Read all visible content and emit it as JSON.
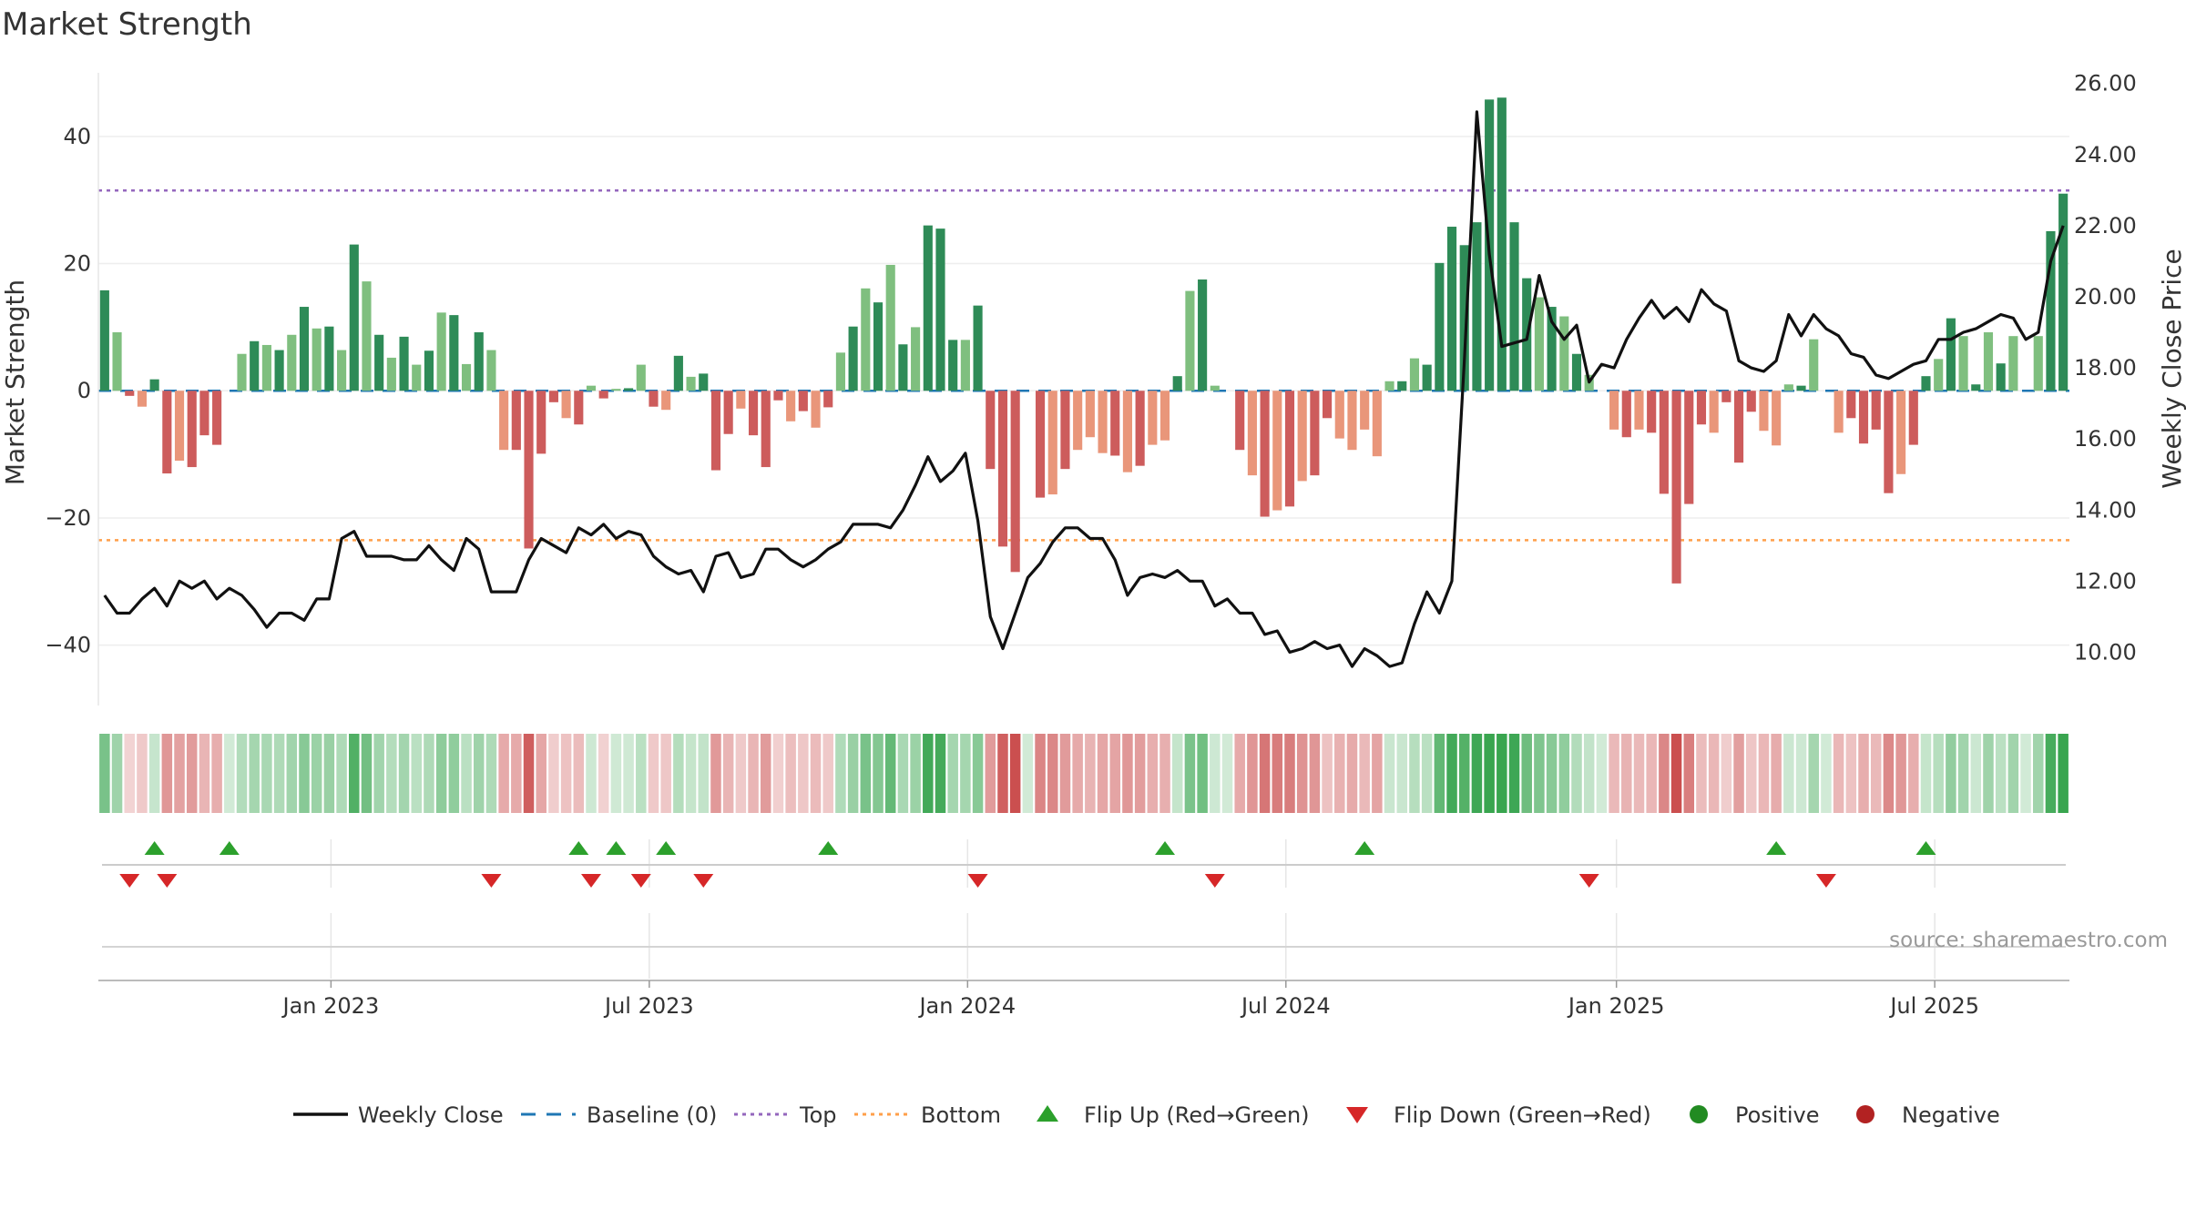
{
  "chart_data": {
    "type": "bar+line",
    "title": "Market Strength",
    "source": "source: sharemaestro.com",
    "left_axis": {
      "label": "Market Strength",
      "ylim": [
        -49.5,
        50
      ],
      "ticks": [
        40,
        20,
        0,
        -20,
        -40
      ],
      "tick_labels": [
        "40",
        "20",
        "0",
        "−20",
        "−40"
      ]
    },
    "right_axis": {
      "label": "Weekly Close Price",
      "ylim": [
        8.5,
        26.3
      ],
      "ticks": [
        26,
        24,
        22,
        20,
        18,
        16,
        14,
        12,
        10
      ],
      "tick_labels": [
        "26.00",
        "24.00",
        "22.00",
        "20.00",
        "18.00",
        "16.00",
        "14.00",
        "12.00",
        "10.00"
      ]
    },
    "x_axis": {
      "start": "2022-08-22",
      "end": "2025-09-22",
      "tick_dates": [
        "2023-01-02",
        "2023-07-03",
        "2024-01-01",
        "2024-07-01",
        "2025-01-06",
        "2025-07-07"
      ],
      "tick_labels": [
        "Jan 2023",
        "Jul 2023",
        "Jan 2024",
        "Jul 2024",
        "Jan 2025",
        "Jul 2025"
      ]
    },
    "reference_lines": {
      "top": 31.5,
      "bottom": -23.5,
      "baseline": 0
    },
    "strength": [
      15.8,
      9.2,
      -0.8,
      -2.5,
      1.8,
      -13,
      -11,
      -12,
      -7,
      -8.5,
      0,
      5.8,
      7.8,
      7.2,
      6.4,
      8.8,
      13.2,
      9.8,
      10.1,
      6.4,
      23,
      17.2,
      8.8,
      5.2,
      8.5,
      4.1,
      6.3,
      12.3,
      11.9,
      4.2,
      9.2,
      6.4,
      -9.3,
      -9.3,
      -24.8,
      -9.9,
      -1.8,
      -4.3,
      -5.3,
      0.8,
      -1.2,
      0.3,
      0.4,
      4.1,
      -2.5,
      -3,
      5.5,
      2.2,
      2.7,
      -12.5,
      -6.8,
      -2.8,
      -7,
      -12,
      -1.5,
      -4.8,
      -3.2,
      -5.8,
      -2.6,
      6,
      10.1,
      16.1,
      13.9,
      19.8,
      7.3,
      10,
      26,
      25.5,
      8,
      8,
      13.4,
      -12.3,
      -24.5,
      -28.5,
      0,
      -16.8,
      -16.3,
      -12.3,
      -9.3,
      -7.3,
      -9.8,
      -10.2,
      -12.8,
      -11.8,
      -8.5,
      -7.8,
      2.3,
      15.7,
      17.5,
      0.8,
      0,
      -9.3,
      -13.3,
      -19.8,
      -18.8,
      -18.2,
      -14.2,
      -13.3,
      -4.3,
      -7.5,
      -9.3,
      -6.1,
      -10.3,
      1.5,
      1.5,
      5.1,
      4.1,
      20.1,
      25.8,
      22.9,
      26.5,
      45.8,
      46.1,
      26.5,
      17.7,
      14.7,
      13.2,
      11.7,
      5.8,
      2.5,
      0,
      -6.1,
      -7.3,
      -6.1,
      -6.6,
      -16.2,
      -30.3,
      -17.8,
      -5.3,
      -6.6,
      -1.8,
      -11.3,
      -3.3,
      -6.3,
      -8.6,
      1,
      0.8,
      8.1,
      0,
      -6.6,
      -4.3,
      -8.3,
      -6.1,
      -16.1,
      -13.1,
      -8.5,
      2.3,
      5,
      11.4,
      8.6,
      1,
      9.2,
      4.3,
      8.6,
      0,
      8.6,
      25.1,
      31
    ]
  },
  "series_price": {
    "name": "Weekly Close",
    "values": [
      11.6,
      11.1,
      11.1,
      11.5,
      11.8,
      11.3,
      12.0,
      11.8,
      12.0,
      11.5,
      11.8,
      11.6,
      11.2,
      10.7,
      11.1,
      11.1,
      10.9,
      11.5,
      11.5,
      13.2,
      13.4,
      12.7,
      12.7,
      12.7,
      12.6,
      12.6,
      13.0,
      12.6,
      12.3,
      13.2,
      12.9,
      11.7,
      11.7,
      11.7,
      12.6,
      13.2,
      13.0,
      12.8,
      13.5,
      13.3,
      13.6,
      13.2,
      13.4,
      13.3,
      12.7,
      12.4,
      12.2,
      12.3,
      11.7,
      12.7,
      12.8,
      12.1,
      12.2,
      12.9,
      12.9,
      12.6,
      12.4,
      12.6,
      12.9,
      13.1,
      13.6,
      13.6,
      13.6,
      13.5,
      14.0,
      14.7,
      15.5,
      14.8,
      15.1,
      15.6,
      13.7,
      11.0,
      10.1,
      11.1,
      12.1,
      12.5,
      13.1,
      13.5,
      13.5,
      13.2,
      13.2,
      12.6,
      11.6,
      12.1,
      12.2,
      12.1,
      12.3,
      12.0,
      12.0,
      11.3,
      11.5,
      11.1,
      11.1,
      10.5,
      10.6,
      10.0,
      10.1,
      10.3,
      10.1,
      10.2,
      9.6,
      10.1,
      9.9,
      9.6,
      9.7,
      10.8,
      11.7,
      11.1,
      12.0,
      18.2,
      25.2,
      21.2,
      18.6,
      18.7,
      18.8,
      20.6,
      19.3,
      18.8,
      19.2,
      17.6,
      18.1,
      18.0,
      18.8,
      19.4,
      19.9,
      19.4,
      19.7,
      19.3,
      20.2,
      19.8,
      19.6,
      18.2,
      18.0,
      17.9,
      18.2,
      19.5,
      18.9,
      19.5,
      19.1,
      18.9,
      18.4,
      18.3,
      17.8,
      17.7,
      17.9,
      18.1,
      18.2,
      18.8,
      18.8,
      19.0,
      19.1,
      19.3,
      19.5,
      19.4,
      18.8,
      19.0,
      21.0,
      22.0
    ],
    "color": "#111111"
  },
  "flip_up_weeks": [
    4,
    10,
    38,
    41,
    45,
    58,
    85,
    101,
    134,
    146
  ],
  "flip_down_weeks": [
    2,
    5,
    31,
    39,
    43,
    48,
    70,
    89,
    119,
    138
  ],
  "colors": {
    "strong_green": "#2e8b57",
    "light_green": "#7fbf7f",
    "strong_red": "#cd5c5c",
    "light_red": "#e9967a",
    "top_line": "#9467bd",
    "bottom_line": "#ff9f4a",
    "baseline": "#1f77b4",
    "flip_up": "#2ca02c",
    "flip_down": "#d62728",
    "positive": "#228b22",
    "negative": "#b22222"
  },
  "legend": [
    {
      "label": "Weekly Close",
      "marker": "line"
    },
    {
      "label": "Baseline (0)",
      "marker": "dash"
    },
    {
      "label": "Top",
      "marker": "dot-purple"
    },
    {
      "label": "Bottom",
      "marker": "dot-orange"
    },
    {
      "label": "Flip Up (Red→Green)",
      "marker": "triangle-up"
    },
    {
      "label": "Flip Down (Green→Red)",
      "marker": "triangle-down"
    },
    {
      "label": "Positive",
      "marker": "circle-green"
    },
    {
      "label": "Negative",
      "marker": "circle-red"
    }
  ]
}
